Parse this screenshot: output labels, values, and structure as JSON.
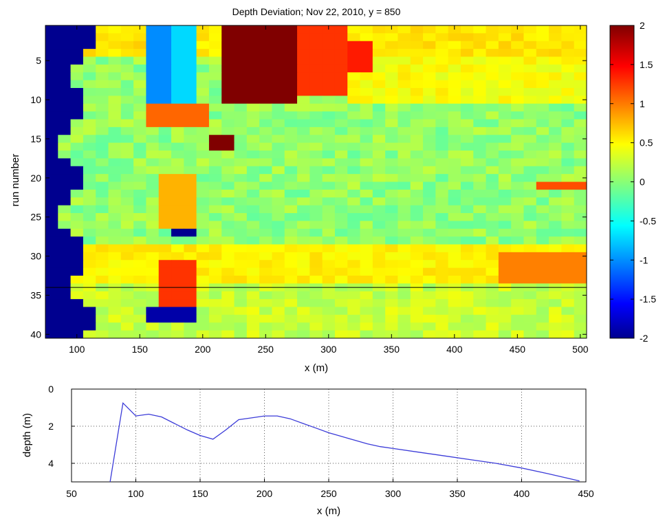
{
  "chart_data": [
    {
      "type": "heatmap",
      "title": "Depth Deviation; Nov 22, 2010, y = 850",
      "xlabel": "x (m)",
      "ylabel": "run number",
      "xlim": [
        75,
        505
      ],
      "ylim": [
        40.5,
        0.5
      ],
      "x_ticks": [
        100,
        150,
        200,
        250,
        300,
        350,
        400,
        450,
        500
      ],
      "y_ticks": [
        5,
        10,
        15,
        20,
        25,
        30,
        35,
        40
      ],
      "colorbar": {
        "limits": [
          -2,
          2
        ],
        "ticks": [
          2,
          1.5,
          1,
          0.5,
          0,
          -0.5,
          -1,
          -1.5,
          -2
        ]
      },
      "colormap": "jet",
      "grid": false,
      "reference_line_run": 34,
      "cell_width_m": 10,
      "values_note": "Approximate depth deviation (m) per run and x-bin, estimated from the color field."
    },
    {
      "type": "line",
      "title": "",
      "xlabel": "x (m)",
      "ylabel": "depth (m)",
      "xlim": [
        50,
        450
      ],
      "ylim": [
        5,
        0
      ],
      "x_ticks": [
        50,
        100,
        150,
        200,
        250,
        300,
        350,
        400,
        450
      ],
      "y_ticks": [
        0,
        2,
        4
      ],
      "grid": true,
      "line_color": "#3a3ad8",
      "series": [
        {
          "x": [
            80,
            90,
            95,
            100,
            110,
            120,
            130,
            140,
            150,
            160,
            170,
            180,
            190,
            200,
            210,
            220,
            230,
            240,
            250,
            260,
            270,
            280,
            290,
            300,
            320,
            340,
            360,
            380,
            400,
            420,
            445
          ],
          "y": [
            5.0,
            0.75,
            1.1,
            1.45,
            1.35,
            1.5,
            1.85,
            2.2,
            2.5,
            2.7,
            2.2,
            1.65,
            1.55,
            1.45,
            1.45,
            1.6,
            1.85,
            2.1,
            2.35,
            2.55,
            2.75,
            2.95,
            3.1,
            3.2,
            3.4,
            3.6,
            3.8,
            4.0,
            4.25,
            4.55,
            4.95
          ]
        }
      ]
    }
  ]
}
